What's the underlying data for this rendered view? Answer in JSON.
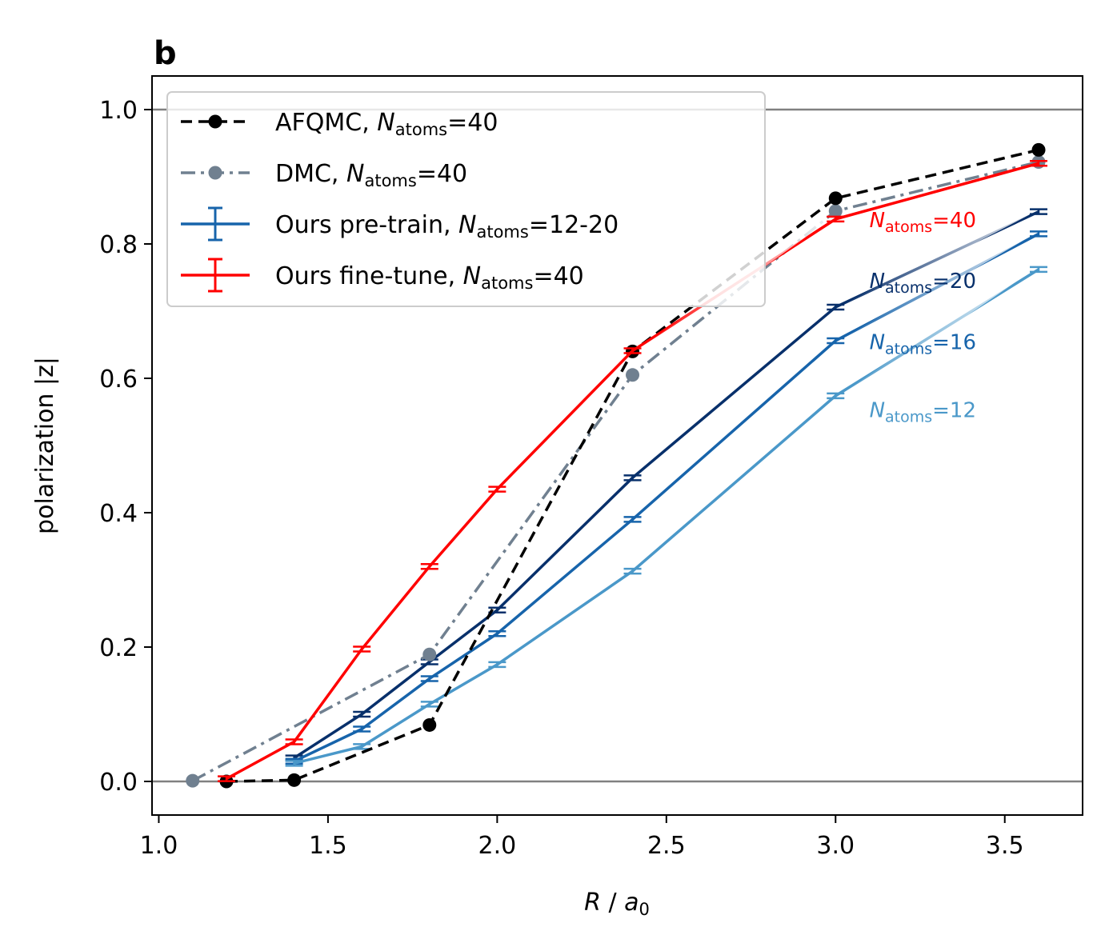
{
  "chart_data": {
    "type": "line",
    "panel_label": "b",
    "xlabel": {
      "italic": "R",
      "mid": " / ",
      "italic2": "a",
      "sub": "0"
    },
    "ylabel": "polarization |z|",
    "xlim": [
      0.98,
      3.73
    ],
    "ylim": [
      -0.05,
      1.05
    ],
    "xticks": [
      1.0,
      1.5,
      2.0,
      2.5,
      3.0,
      3.5
    ],
    "xtick_labels": [
      "1.0",
      "1.5",
      "2.0",
      "2.5",
      "3.0",
      "3.5"
    ],
    "yticks": [
      0.0,
      0.2,
      0.4,
      0.6,
      0.8,
      1.0
    ],
    "ytick_labels": [
      "0.0",
      "0.2",
      "0.4",
      "0.6",
      "0.8",
      "1.0"
    ],
    "reference_lines": [
      0.0,
      1.0
    ],
    "legend": {
      "placement": "top-left",
      "entries": [
        {
          "prefix": "AFQMC, ",
          "N": "N",
          "sub": "atoms",
          "suffix": "=40",
          "color": "#000000",
          "style": "dashed-marker"
        },
        {
          "prefix": "DMC, ",
          "N": "N",
          "sub": "atoms",
          "suffix": "=40",
          "color": "#708090",
          "style": "dashdot-marker"
        },
        {
          "prefix": "Ours pre-train, ",
          "N": "N",
          "sub": "atoms",
          "suffix": "=12-20",
          "color": "#1764ab",
          "style": "errorbar"
        },
        {
          "prefix": "Ours fine-tune, ",
          "N": "N",
          "sub": "atoms",
          "suffix": "=40",
          "color": "#ff0000",
          "style": "errorbar"
        }
      ]
    },
    "series": [
      {
        "name": "AFQMC, N_atoms=40",
        "color": "#000000",
        "style": "dashed",
        "marker": true,
        "x": [
          1.2,
          1.4,
          1.8,
          2.4,
          3.0,
          3.6
        ],
        "y": [
          0.0,
          0.002,
          0.084,
          0.64,
          0.868,
          0.94
        ]
      },
      {
        "name": "DMC, N_atoms=40",
        "color": "#708090",
        "style": "dashdot",
        "marker": true,
        "x": [
          1.1,
          1.8,
          2.4,
          3.0,
          3.6
        ],
        "y": [
          0.001,
          0.189,
          0.605,
          0.849,
          0.922
        ]
      },
      {
        "name": "Ours fine-tune, N_atoms=40",
        "color": "#ff0000",
        "style": "solid",
        "errorbar": true,
        "x": [
          1.2,
          1.4,
          1.6,
          1.8,
          2.0,
          2.4,
          3.0,
          3.6
        ],
        "y": [
          0.004,
          0.059,
          0.197,
          0.32,
          0.435,
          0.641,
          0.837,
          0.92
        ],
        "fade_from_x": 2.4
      },
      {
        "name": "N_atoms=20",
        "color": "#08306b",
        "style": "solid",
        "errorbar": true,
        "x": [
          1.4,
          1.6,
          1.8,
          2.0,
          2.4,
          3.0,
          3.6
        ],
        "y": [
          0.035,
          0.1,
          0.178,
          0.255,
          0.452,
          0.706,
          0.848
        ],
        "fade_from_x": 3.0
      },
      {
        "name": "N_atoms=16",
        "color": "#1764ab",
        "style": "solid",
        "errorbar": true,
        "x": [
          1.4,
          1.6,
          1.8,
          2.0,
          2.4,
          3.0,
          3.6
        ],
        "y": [
          0.03,
          0.078,
          0.153,
          0.22,
          0.39,
          0.656,
          0.815
        ],
        "fade_from_x": 3.0
      },
      {
        "name": "N_atoms=12",
        "color": "#4a98c9",
        "style": "solid",
        "errorbar": true,
        "x": [
          1.4,
          1.6,
          1.8,
          2.0,
          2.4,
          3.0,
          3.6
        ],
        "y": [
          0.027,
          0.052,
          0.115,
          0.174,
          0.313,
          0.574,
          0.762
        ],
        "fade_from_x": 3.0
      }
    ],
    "annotations": [
      {
        "N": "N",
        "sub": "atoms",
        "suffix": "=40",
        "color": "#ff0000",
        "x": 3.1,
        "y": 0.836
      },
      {
        "N": "N",
        "sub": "atoms",
        "suffix": "=20",
        "color": "#08306b",
        "x": 3.1,
        "y": 0.745
      },
      {
        "N": "N",
        "sub": "atoms",
        "suffix": "=16",
        "color": "#1764ab",
        "x": 3.1,
        "y": 0.654
      },
      {
        "N": "N",
        "sub": "atoms",
        "suffix": "=12",
        "color": "#4a98c9",
        "x": 3.1,
        "y": 0.553
      }
    ]
  }
}
